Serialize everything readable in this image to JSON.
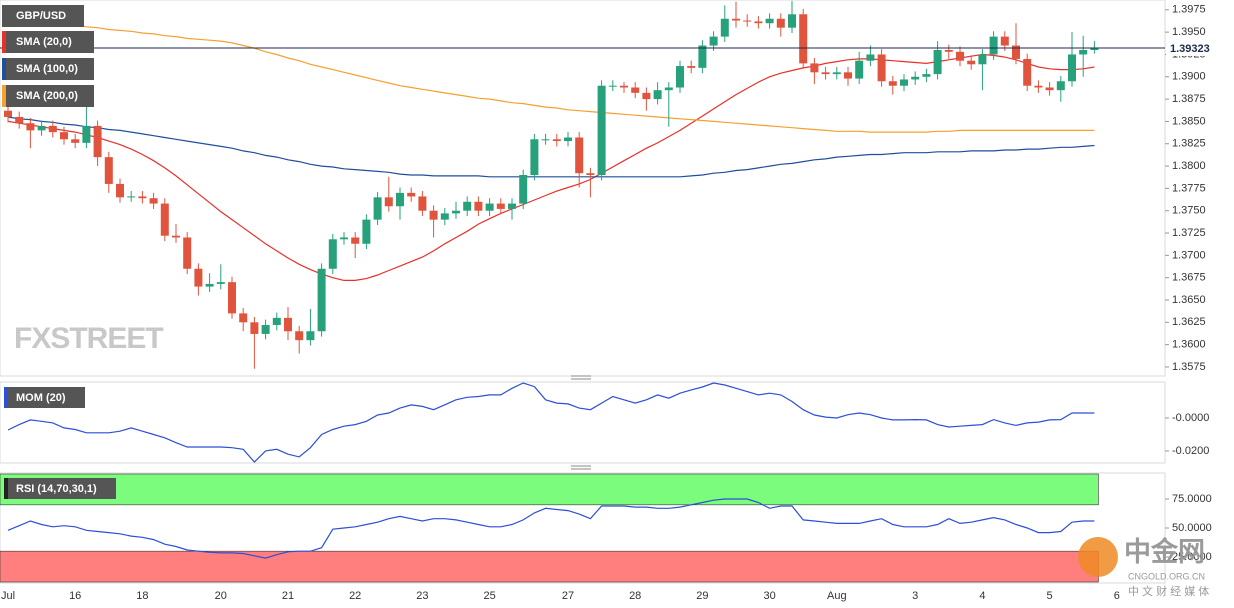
{
  "chart_data": [
    {
      "type": "candlestick",
      "title": "GBP/USD",
      "up_color": "#26a17b",
      "down_color": "#e0533d",
      "categories": [
        "Jul",
        null,
        null,
        null,
        null,
        null,
        "16",
        null,
        null,
        null,
        null,
        null,
        "18",
        null,
        null,
        null,
        null,
        null,
        null,
        "20",
        null,
        null,
        null,
        null,
        null,
        "21",
        null,
        null,
        null,
        null,
        null,
        "22",
        null,
        null,
        null,
        null,
        null,
        "23",
        null,
        null,
        null,
        null,
        null,
        "25",
        null,
        null,
        null,
        null,
        null,
        null,
        "27",
        null,
        null,
        null,
        null,
        null,
        "28",
        null,
        null,
        null,
        null,
        null,
        "29",
        null,
        null,
        null,
        null,
        null,
        "30",
        null,
        null,
        null,
        null,
        null,
        "Aug",
        null,
        null,
        null,
        null,
        null,
        null,
        "3",
        null,
        null,
        null,
        null,
        null,
        "4",
        null,
        null,
        null,
        null,
        null,
        "5",
        null,
        null,
        null,
        null,
        null,
        "6"
      ],
      "open": [
        1.3862,
        1.3855,
        1.3848,
        1.384,
        1.3845,
        1.3838,
        1.383,
        1.3826,
        1.3845,
        1.381,
        1.378,
        1.3765,
        1.3766,
        1.3764,
        1.3758,
        1.3722,
        1.372,
        1.3685,
        1.3665,
        1.3668,
        1.367,
        1.3635,
        1.3625,
        1.3612,
        1.3622,
        1.363,
        1.3615,
        1.3605,
        1.3615,
        1.3685,
        1.3718,
        1.372,
        1.3713,
        1.374,
        1.3765,
        1.3755,
        1.377,
        1.3766,
        1.375,
        1.374,
        1.3747,
        1.375,
        1.376,
        1.375,
        1.3758,
        1.3752,
        1.3758,
        1.379,
        1.383,
        1.383,
        1.3828,
        1.3832,
        1.3792,
        1.379,
        1.389,
        1.389,
        1.3888,
        1.3882,
        1.3875,
        1.3885,
        1.3888,
        1.3912,
        1.391,
        1.3935,
        1.3945,
        1.3965,
        1.3963,
        1.3962,
        1.396,
        1.3965,
        1.3955,
        1.397,
        1.3915,
        1.3905,
        1.3903,
        1.3905,
        1.3898,
        1.3918,
        1.3925,
        1.3895,
        1.389,
        1.3897,
        1.39,
        1.3903,
        1.393,
        1.3928,
        1.3918,
        1.3914,
        1.3925,
        1.3945,
        1.3935,
        1.392,
        1.389,
        1.3888,
        1.3885,
        1.3895,
        1.3925,
        1.393,
        null,
        null
      ],
      "high": [
        1.3868,
        1.3861,
        1.3854,
        1.3851,
        1.3851,
        1.3844,
        1.3836,
        1.387,
        1.3851,
        1.3816,
        1.3786,
        1.3772,
        1.3772,
        1.377,
        1.3764,
        1.3735,
        1.3726,
        1.3691,
        1.368,
        1.369,
        1.3676,
        1.3641,
        1.3631,
        1.3628,
        1.3636,
        1.3642,
        1.3621,
        1.364,
        1.3691,
        1.3724,
        1.3726,
        1.3726,
        1.3746,
        1.3771,
        1.3788,
        1.3776,
        1.3776,
        1.3772,
        1.3756,
        1.3753,
        1.376,
        1.3766,
        1.3766,
        1.3764,
        1.3764,
        1.3764,
        1.3796,
        1.3836,
        1.3836,
        1.3836,
        1.3838,
        1.3838,
        1.3798,
        1.3896,
        1.3896,
        1.3894,
        1.3894,
        1.3888,
        1.3894,
        1.3894,
        1.3918,
        1.3918,
        1.3941,
        1.3951,
        1.398,
        1.3984,
        1.397,
        1.3968,
        1.3971,
        1.3971,
        1.3985,
        1.3976,
        1.3921,
        1.3911,
        1.3911,
        1.3911,
        1.3928,
        1.3935,
        1.3931,
        1.3901,
        1.3903,
        1.3906,
        1.3909,
        1.394,
        1.3936,
        1.3934,
        1.3924,
        1.3931,
        1.3951,
        1.3951,
        1.396,
        1.3926,
        1.3896,
        1.3894,
        1.3901,
        1.395,
        1.3946,
        1.394,
        null,
        null
      ],
      "low": [
        1.3849,
        1.3842,
        1.382,
        1.3834,
        1.3832,
        1.3824,
        1.382,
        1.382,
        1.38,
        1.377,
        1.3759,
        1.376,
        1.3758,
        1.3752,
        1.3716,
        1.3714,
        1.3679,
        1.3655,
        1.3659,
        1.3662,
        1.3629,
        1.3615,
        1.3573,
        1.3606,
        1.3616,
        1.3605,
        1.359,
        1.3599,
        1.3609,
        1.3679,
        1.3712,
        1.3697,
        1.3707,
        1.3734,
        1.3749,
        1.374,
        1.376,
        1.3744,
        1.372,
        1.3734,
        1.3741,
        1.3744,
        1.3744,
        1.3744,
        1.3746,
        1.374,
        1.3752,
        1.3784,
        1.3824,
        1.3822,
        1.3822,
        1.3776,
        1.3765,
        1.3784,
        1.3884,
        1.3882,
        1.3876,
        1.3862,
        1.3869,
        1.3844,
        1.3882,
        1.3904,
        1.3904,
        1.3929,
        1.3939,
        1.3955,
        1.3956,
        1.3954,
        1.3954,
        1.3945,
        1.3949,
        1.3909,
        1.3892,
        1.3897,
        1.3897,
        1.389,
        1.3892,
        1.3912,
        1.3889,
        1.388,
        1.3884,
        1.3891,
        1.3894,
        1.3897,
        1.392,
        1.3912,
        1.3908,
        1.3885,
        1.3919,
        1.3929,
        1.3914,
        1.3884,
        1.3882,
        1.3879,
        1.3872,
        1.3889,
        1.39,
        1.3926,
        null,
        null
      ],
      "close": [
        1.3855,
        1.3848,
        1.384,
        1.3845,
        1.3838,
        1.383,
        1.3826,
        1.3845,
        1.381,
        1.378,
        1.3765,
        1.3766,
        1.3764,
        1.3758,
        1.3722,
        1.372,
        1.3685,
        1.3665,
        1.3668,
        1.367,
        1.3635,
        1.3625,
        1.3612,
        1.3622,
        1.363,
        1.3615,
        1.3605,
        1.3615,
        1.3685,
        1.3718,
        1.372,
        1.3713,
        1.374,
        1.3765,
        1.3755,
        1.377,
        1.3766,
        1.375,
        1.374,
        1.3747,
        1.375,
        1.376,
        1.375,
        1.3758,
        1.3752,
        1.3758,
        1.379,
        1.383,
        1.383,
        1.3828,
        1.3832,
        1.3792,
        1.379,
        1.389,
        1.389,
        1.3888,
        1.3882,
        1.3875,
        1.3885,
        1.3888,
        1.3912,
        1.391,
        1.3935,
        1.3945,
        1.3965,
        1.3963,
        1.3962,
        1.396,
        1.3965,
        1.3955,
        1.397,
        1.3915,
        1.3905,
        1.3903,
        1.3905,
        1.3898,
        1.3918,
        1.3925,
        1.3895,
        1.389,
        1.3897,
        1.39,
        1.3903,
        1.393,
        1.3928,
        1.3918,
        1.3914,
        1.3925,
        1.3945,
        1.3935,
        1.392,
        1.389,
        1.3888,
        1.3885,
        1.3895,
        1.3925,
        1.393,
        1.3932,
        null,
        null
      ],
      "series": [
        {
          "name": "SMA (20,0)",
          "color": "#e8302a",
          "values": [
            1.385,
            1.3848,
            1.3846,
            1.3844,
            1.3842,
            1.384,
            1.3838,
            1.3835,
            1.3832,
            1.3828,
            1.3824,
            1.3819,
            1.3813,
            1.3806,
            1.3798,
            1.3789,
            1.3779,
            1.3769,
            1.3759,
            1.3749,
            1.374,
            1.3731,
            1.3722,
            1.3713,
            1.3705,
            1.3697,
            1.369,
            1.3684,
            1.3679,
            1.3675,
            1.3672,
            1.3672,
            1.3674,
            1.3678,
            1.3683,
            1.3688,
            1.3693,
            1.3698,
            1.3705,
            1.3713,
            1.372,
            1.3727,
            1.3735,
            1.3741,
            1.3747,
            1.3752,
            1.3757,
            1.3762,
            1.3767,
            1.3772,
            1.3776,
            1.378,
            1.3785,
            1.3792,
            1.3799,
            1.3806,
            1.3813,
            1.382,
            1.3826,
            1.3833,
            1.384,
            1.3848,
            1.3856,
            1.3864,
            1.3872,
            1.388,
            1.3887,
            1.3894,
            1.39,
            1.3904,
            1.3907,
            1.391,
            1.3912,
            1.3915,
            1.3917,
            1.3919,
            1.392,
            1.392,
            1.3919,
            1.3918,
            1.3917,
            1.3916,
            1.3915,
            1.3917,
            1.3919,
            1.3921,
            1.3923,
            1.3925,
            1.3924,
            1.3922,
            1.3919,
            1.3915,
            1.3911,
            1.3909,
            1.3908,
            1.3908,
            1.3909,
            1.3911,
            null,
            null
          ]
        },
        {
          "name": "SMA (100,0)",
          "color": "#1f4e9c",
          "values": [
            1.3855,
            1.3853,
            1.3852,
            1.385,
            1.3849,
            1.3847,
            1.3846,
            1.3844,
            1.3843,
            1.3841,
            1.384,
            1.3838,
            1.3836,
            1.3834,
            1.3832,
            1.383,
            1.3828,
            1.3826,
            1.3824,
            1.3822,
            1.382,
            1.3817,
            1.3815,
            1.3812,
            1.381,
            1.3807,
            1.3805,
            1.3802,
            1.38,
            1.3799,
            1.3797,
            1.3796,
            1.3795,
            1.3794,
            1.3793,
            1.3791,
            1.379,
            1.379,
            1.3789,
            1.3789,
            1.3789,
            1.3789,
            1.3789,
            1.3788,
            1.3788,
            1.3788,
            1.3788,
            1.3788,
            1.3788,
            1.3788,
            1.3788,
            1.3788,
            1.3788,
            1.3788,
            1.3788,
            1.3788,
            1.3788,
            1.3788,
            1.3788,
            1.3788,
            1.3788,
            1.3789,
            1.379,
            1.3792,
            1.3793,
            1.3795,
            1.3796,
            1.3798,
            1.38,
            1.3802,
            1.3803,
            1.3805,
            1.3807,
            1.3808,
            1.381,
            1.3811,
            1.3812,
            1.3813,
            1.3813,
            1.3814,
            1.3815,
            1.3815,
            1.3815,
            1.3816,
            1.3816,
            1.3816,
            1.3817,
            1.3817,
            1.3817,
            1.3818,
            1.3818,
            1.3819,
            1.3819,
            1.382,
            1.3821,
            1.3821,
            1.3822,
            1.3823,
            null,
            null
          ]
        },
        {
          "name": "SMA (200,0)",
          "color": "#f5a030",
          "values": [
            1.3965,
            1.3964,
            1.3963,
            1.3962,
            1.396,
            1.3959,
            1.3958,
            1.3956,
            1.3955,
            1.3953,
            1.3952,
            1.3951,
            1.3949,
            1.3948,
            1.3946,
            1.3945,
            1.3943,
            1.3942,
            1.3941,
            1.394,
            1.3938,
            1.3935,
            1.3932,
            1.3928,
            1.3925,
            1.3921,
            1.3918,
            1.3914,
            1.3911,
            1.3908,
            1.3905,
            1.3902,
            1.3899,
            1.3896,
            1.3893,
            1.389,
            1.3888,
            1.3886,
            1.3884,
            1.3882,
            1.388,
            1.3878,
            1.3876,
            1.3875,
            1.3873,
            1.3871,
            1.387,
            1.3868,
            1.3866,
            1.3865,
            1.3863,
            1.3862,
            1.3861,
            1.386,
            1.3859,
            1.3858,
            1.3857,
            1.3856,
            1.3855,
            1.3854,
            1.3853,
            1.3852,
            1.3851,
            1.385,
            1.3849,
            1.3848,
            1.3847,
            1.3846,
            1.3845,
            1.3844,
            1.3843,
            1.3842,
            1.3841,
            1.384,
            1.3839,
            1.3839,
            1.3839,
            1.3838,
            1.3838,
            1.3838,
            1.3838,
            1.3838,
            1.3838,
            1.3839,
            1.3839,
            1.384,
            1.384,
            1.384,
            1.384,
            1.384,
            1.384,
            1.384,
            1.384,
            1.384,
            1.384,
            1.384,
            1.384,
            1.384,
            null,
            null
          ]
        }
      ],
      "ylim": [
        1.3566,
        1.3986
      ],
      "yticks": [
        1.3575,
        {
          "value": 1.36,
          "label": "1.3600"
        },
        1.3625,
        {
          "value": 1.365,
          "label": "1.3650"
        },
        1.3675,
        {
          "value": 1.37,
          "label": "1.3700"
        },
        1.3725,
        {
          "value": 1.375,
          "label": "1.3750"
        },
        1.3775,
        {
          "value": 1.38,
          "label": "1.3800"
        },
        1.3825,
        {
          "value": 1.385,
          "label": "1.3850"
        },
        1.3875,
        {
          "value": 1.39,
          "label": "1.3900"
        },
        1.3925,
        {
          "value": 1.395,
          "label": "1.3950"
        },
        1.3975
      ],
      "last_price": 1.39323
    },
    {
      "type": "line",
      "series": [
        {
          "name": "MOM (20)",
          "color": "#2c4fd6",
          "values": [
            -0.0073,
            -0.004,
            -0.0012,
            -0.002,
            -0.003,
            -0.006,
            -0.007,
            -0.009,
            -0.009,
            -0.009,
            -0.008,
            -0.006,
            -0.008,
            -0.01,
            -0.012,
            -0.015,
            -0.0176,
            -0.0176,
            -0.0176,
            -0.0176,
            -0.018,
            -0.019,
            -0.0267,
            -0.02,
            -0.019,
            -0.022,
            -0.0236,
            -0.018,
            -0.01,
            -0.007,
            -0.005,
            -0.004,
            -0.002,
            0.0018,
            0.003,
            0.006,
            0.0079,
            0.007,
            0.005,
            0.008,
            0.011,
            0.0125,
            0.013,
            0.014,
            0.014,
            0.018,
            0.0212,
            0.019,
            0.011,
            0.009,
            0.0085,
            0.006,
            0.005,
            0.009,
            0.013,
            0.011,
            0.009,
            0.011,
            0.014,
            0.012,
            0.015,
            0.017,
            0.0188,
            0.0212,
            0.02,
            0.018,
            0.016,
            0.014,
            0.015,
            0.014,
            0.01,
            0.005,
            0.0018,
            0.0005,
            0.0,
            0.002,
            0.003,
            0.002,
            0.0,
            -0.0012,
            -0.0012,
            -0.001,
            -0.0012,
            -0.004,
            -0.0055,
            -0.005,
            -0.0045,
            -0.004,
            -0.001,
            -0.003,
            -0.0045,
            -0.003,
            -0.0025,
            -0.0012,
            -0.001,
            0.003,
            0.003,
            0.003,
            null,
            null
          ]
        }
      ],
      "ylim": [
        -0.0267,
        0.0212
      ],
      "yticks": [
        {
          "value": 0,
          "label": "-0.0000"
        },
        {
          "value": -0.02,
          "label": "-0.0200"
        }
      ]
    },
    {
      "type": "line",
      "series": [
        {
          "name": "RSI (14,70,30,1)",
          "color": "#2c4fd6",
          "values": [
            48,
            52,
            56,
            53,
            51,
            52,
            51,
            48,
            47,
            46,
            45,
            43,
            42,
            40,
            36,
            34,
            31,
            30,
            29,
            28.5,
            28.5,
            28,
            26,
            24,
            27,
            29.5,
            30,
            30,
            33,
            49,
            50,
            51,
            53,
            55,
            58,
            60,
            58,
            56,
            58,
            58,
            57,
            55,
            53,
            51,
            51,
            53,
            57,
            63,
            67,
            66,
            65,
            62,
            58,
            69,
            69,
            69,
            68,
            68,
            67,
            67,
            68,
            70,
            72,
            74,
            75,
            75,
            75,
            72,
            67,
            69,
            69,
            57,
            56,
            55,
            54,
            54,
            54,
            56,
            58,
            53,
            51,
            51,
            51,
            53,
            58,
            54,
            55,
            57,
            59,
            57,
            53,
            50,
            46,
            46,
            47,
            55,
            56,
            56,
            null,
            null
          ]
        }
      ],
      "bands": [
        {
          "from": 70,
          "to": 96.6,
          "color": "#7cfc7c"
        },
        {
          "from": 3.4,
          "to": 30,
          "color": "#ff7f7f"
        }
      ],
      "ylim": [
        3.4,
        96.6
      ],
      "yticks": [
        {
          "value": 75,
          "label": "75.0000"
        },
        {
          "value": 50,
          "label": "50.0000"
        },
        {
          "value": 25,
          "label": "25.0000"
        }
      ]
    }
  ],
  "watermarks": {
    "brand": "FXSTREET",
    "logo": "中金网",
    "site": "CNGOLD.ORG.CN",
    "tagline": "中 文 财 经 媒 体"
  }
}
